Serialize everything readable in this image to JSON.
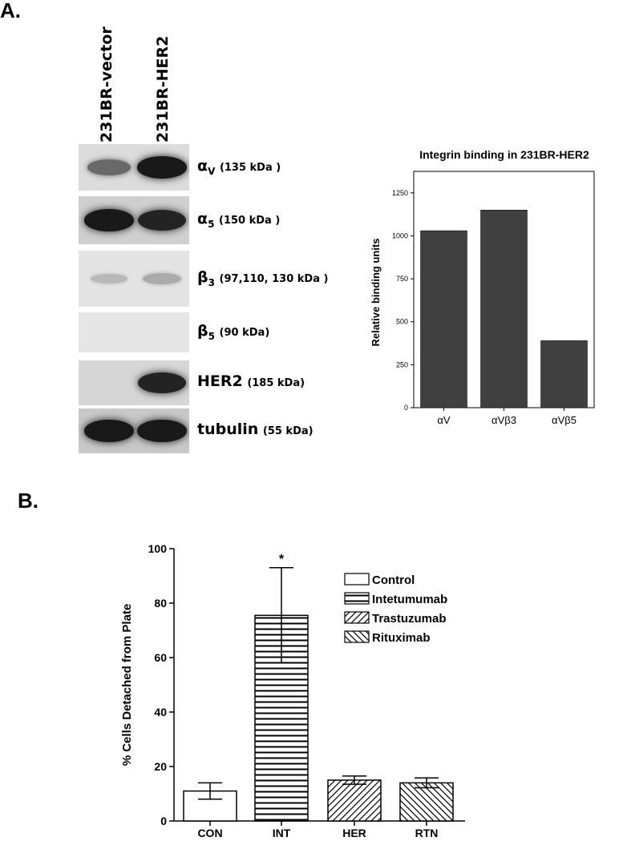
{
  "panel_a": {
    "letter": "A.",
    "lanes": [
      "231BR-vector",
      "231BR-HER2"
    ],
    "rows": [
      {
        "symbol": "α",
        "sub": "V",
        "kda": "(135 kDa )",
        "bg": "#dcdcdc",
        "intensity": [
          0.55,
          0.95
        ]
      },
      {
        "symbol": "α",
        "sub": "5",
        "kda": "(150 kDa )",
        "bg": "#cfcfcf",
        "intensity": [
          0.95,
          0.9
        ]
      },
      {
        "symbol": "β",
        "sub": "3",
        "kda": "(97,110, 130 kDa )",
        "bg": "#e4e4e4",
        "intensity": [
          0.15,
          0.22
        ]
      },
      {
        "symbol": "β",
        "sub": "5",
        "kda": "(90 kDa)",
        "bg": "#e6e6e6",
        "intensity": [
          0.0,
          0.0
        ]
      },
      {
        "symbol": "HER2",
        "sub": "",
        "kda": "(185 kDa)",
        "bg": "#d6d6d6",
        "intensity": [
          0.0,
          0.9
        ]
      },
      {
        "symbol": "tubulin",
        "sub": "",
        "kda": "(55 kDa)",
        "bg": "#c8c8c8",
        "intensity": [
          0.95,
          0.95
        ]
      }
    ]
  },
  "panel_b": {
    "letter": "B."
  },
  "chart_data": [
    {
      "type": "bar",
      "title": "Integrin binding in 231BR-HER2",
      "xlabel": "",
      "ylabel": "Relative binding units",
      "categories": [
        "αV",
        "αVβ3",
        "αVβ5"
      ],
      "values": [
        1030,
        1150,
        390
      ],
      "ylim": [
        0,
        1375
      ],
      "yticks": [
        "0",
        "250",
        "500",
        "750",
        "1000",
        "1250"
      ],
      "bar_color": "#404040",
      "grid": false
    },
    {
      "type": "bar",
      "title": "",
      "xlabel": "",
      "ylabel": "% Cells Detached from Plate",
      "categories": [
        "CON",
        "INT",
        "HER",
        "RTN"
      ],
      "series": [
        {
          "name": "Control",
          "values": [
            11,
            null,
            null,
            null
          ],
          "errors": [
            3,
            null,
            null,
            null
          ],
          "pattern": "none"
        },
        {
          "name": "Intetumumab",
          "values": [
            null,
            75.5,
            null,
            null
          ],
          "errors": [
            null,
            17.5,
            null,
            null
          ],
          "pattern": "horizontal"
        },
        {
          "name": "Trastuzumab",
          "values": [
            null,
            null,
            15,
            null
          ],
          "errors": [
            null,
            null,
            1.5,
            null
          ],
          "pattern": "diag-up"
        },
        {
          "name": "Rituximab",
          "values": [
            null,
            null,
            null,
            14
          ],
          "errors": [
            null,
            null,
            null,
            1.8
          ],
          "pattern": "diag-down"
        }
      ],
      "ylim": [
        0,
        100
      ],
      "yticks": [
        "0",
        "20",
        "40",
        "60",
        "80",
        "100"
      ],
      "annotations": [
        {
          "category": "INT",
          "text": "*"
        }
      ],
      "legend": "top-right",
      "grid": false
    }
  ]
}
